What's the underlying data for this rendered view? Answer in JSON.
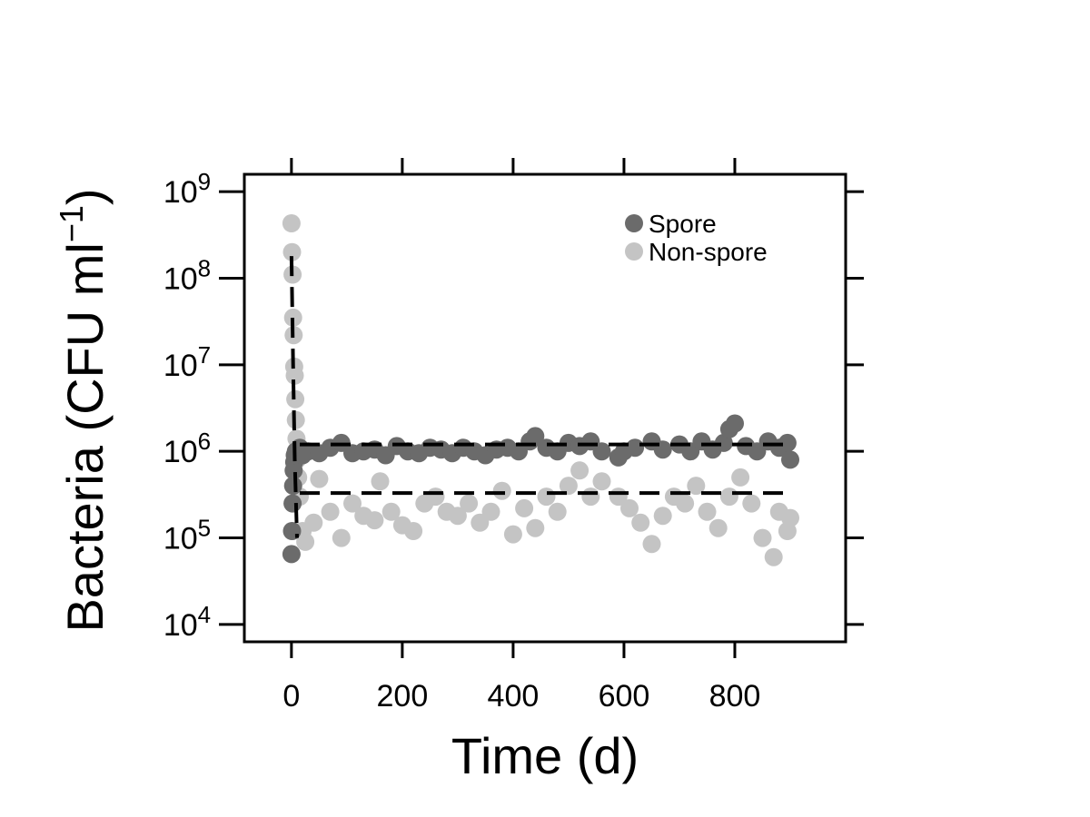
{
  "chart_data": {
    "type": "scatter",
    "title": "",
    "xlabel": "Time (d)",
    "ylabel": "Bacteria (CFU ml",
    "ylabel_superscript": "−1",
    "ylabel_close": ")",
    "xlim": [
      -85,
      1000
    ],
    "ylim_log10": [
      3.8,
      9.2
    ],
    "y_scale": "log10",
    "x_ticks": [
      0,
      200,
      400,
      600,
      800
    ],
    "x_tick_labels": [
      "0",
      "200",
      "400",
      "600",
      "800"
    ],
    "y_tick_exponents": [
      4,
      5,
      6,
      7,
      8,
      9
    ],
    "y_tick_base": "10",
    "y_tick_sup": [
      "4",
      "5",
      "6",
      "7",
      "8",
      "9"
    ],
    "legend_position": "top-right",
    "series": [
      {
        "name": "Spore",
        "color": "#6b6b6b",
        "points": [
          [
            0,
            65000
          ],
          [
            1,
            120000
          ],
          [
            2,
            250000
          ],
          [
            3,
            400000
          ],
          [
            4,
            600000
          ],
          [
            5,
            750000
          ],
          [
            6,
            900000
          ],
          [
            8,
            1000000
          ],
          [
            10,
            950000
          ],
          [
            15,
            1100000
          ],
          [
            20,
            900000
          ],
          [
            30,
            1000000
          ],
          [
            50,
            950000
          ],
          [
            70,
            1100000
          ],
          [
            90,
            1250000
          ],
          [
            110,
            950000
          ],
          [
            130,
            1000000
          ],
          [
            150,
            1050000
          ],
          [
            170,
            900000
          ],
          [
            190,
            1150000
          ],
          [
            210,
            1000000
          ],
          [
            230,
            950000
          ],
          [
            250,
            1100000
          ],
          [
            270,
            1050000
          ],
          [
            290,
            950000
          ],
          [
            310,
            1100000
          ],
          [
            330,
            1000000
          ],
          [
            350,
            900000
          ],
          [
            370,
            1050000
          ],
          [
            390,
            1100000
          ],
          [
            410,
            1000000
          ],
          [
            430,
            1300000
          ],
          [
            440,
            1500000
          ],
          [
            460,
            1100000
          ],
          [
            480,
            1000000
          ],
          [
            500,
            1250000
          ],
          [
            520,
            1150000
          ],
          [
            540,
            1300000
          ],
          [
            560,
            1000000
          ],
          [
            590,
            850000
          ],
          [
            600,
            1000000
          ],
          [
            620,
            1100000
          ],
          [
            650,
            1300000
          ],
          [
            670,
            1050000
          ],
          [
            700,
            1200000
          ],
          [
            720,
            1000000
          ],
          [
            740,
            1300000
          ],
          [
            760,
            1050000
          ],
          [
            780,
            1250000
          ],
          [
            790,
            1800000
          ],
          [
            800,
            2100000
          ],
          [
            820,
            1150000
          ],
          [
            840,
            1000000
          ],
          [
            860,
            1300000
          ],
          [
            880,
            1100000
          ],
          [
            895,
            1250000
          ],
          [
            900,
            800000
          ]
        ]
      },
      {
        "name": "Non-spore",
        "color": "#c4c4c4",
        "points": [
          [
            0,
            430000000
          ],
          [
            1,
            200000000
          ],
          [
            2,
            110000000
          ],
          [
            3,
            35000000
          ],
          [
            4,
            22000000
          ],
          [
            5,
            9500000
          ],
          [
            6,
            7500000
          ],
          [
            7,
            4000000
          ],
          [
            8,
            2300000
          ],
          [
            9,
            1400000
          ],
          [
            10,
            800000
          ],
          [
            12,
            500000
          ],
          [
            15,
            300000
          ],
          [
            20,
            120000
          ],
          [
            25,
            90000
          ],
          [
            40,
            150000
          ],
          [
            50,
            480000
          ],
          [
            70,
            200000
          ],
          [
            90,
            100000
          ],
          [
            110,
            250000
          ],
          [
            130,
            180000
          ],
          [
            150,
            160000
          ],
          [
            160,
            450000
          ],
          [
            180,
            200000
          ],
          [
            200,
            140000
          ],
          [
            220,
            120000
          ],
          [
            240,
            250000
          ],
          [
            260,
            300000
          ],
          [
            280,
            200000
          ],
          [
            300,
            180000
          ],
          [
            320,
            250000
          ],
          [
            340,
            150000
          ],
          [
            360,
            200000
          ],
          [
            380,
            350000
          ],
          [
            400,
            110000
          ],
          [
            420,
            220000
          ],
          [
            440,
            130000
          ],
          [
            460,
            300000
          ],
          [
            480,
            200000
          ],
          [
            500,
            400000
          ],
          [
            520,
            600000
          ],
          [
            540,
            300000
          ],
          [
            560,
            450000
          ],
          [
            590,
            300000
          ],
          [
            610,
            220000
          ],
          [
            630,
            150000
          ],
          [
            650,
            85000
          ],
          [
            670,
            180000
          ],
          [
            690,
            300000
          ],
          [
            710,
            250000
          ],
          [
            730,
            400000
          ],
          [
            750,
            200000
          ],
          [
            770,
            130000
          ],
          [
            790,
            300000
          ],
          [
            810,
            500000
          ],
          [
            830,
            250000
          ],
          [
            850,
            100000
          ],
          [
            870,
            60000
          ],
          [
            880,
            200000
          ],
          [
            895,
            120000
          ],
          [
            900,
            170000
          ]
        ]
      }
    ],
    "fit_lines": [
      {
        "style": "dashed",
        "color": "#000000",
        "points": [
          [
            0,
            180000000
          ],
          [
            3,
            10000000
          ],
          [
            6,
            800000
          ],
          [
            10,
            100000
          ]
        ]
      },
      {
        "style": "dashed",
        "color": "#000000",
        "points": [
          [
            15,
            1200000
          ],
          [
            900,
            1200000
          ]
        ]
      },
      {
        "style": "dashed",
        "color": "#000000",
        "points": [
          [
            15,
            330000
          ],
          [
            900,
            330000
          ]
        ]
      }
    ]
  }
}
